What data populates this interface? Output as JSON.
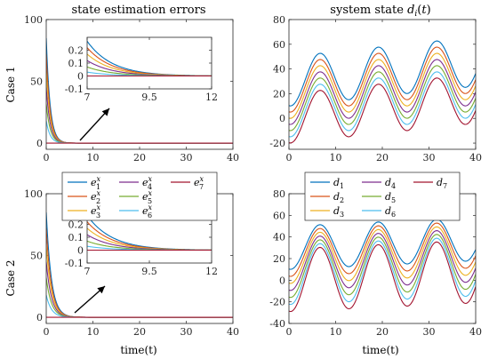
{
  "colors": [
    "#0072BD",
    "#D95319",
    "#EDB120",
    "#7E2F8E",
    "#77AC30",
    "#4DBEEE",
    "#A2142F"
  ],
  "case_labels": [
    "Case 1",
    "Case 2"
  ],
  "chart_data": [
    {
      "id": "p1",
      "type": "line",
      "title": "state estimation errors",
      "xlabel": "",
      "ylabel": "",
      "xlim": [
        0,
        40
      ],
      "ylim": [
        -5,
        100
      ],
      "xticks": [
        "0",
        "10",
        "20",
        "30",
        "40"
      ],
      "xtick_values": [
        0,
        10,
        20,
        30,
        40
      ],
      "yticks": [
        "0",
        "50",
        "100"
      ],
      "ytick_values": [
        0,
        50,
        100
      ],
      "kind": "decay",
      "series": [
        {
          "a": 85,
          "k": 1.2
        },
        {
          "a": 72,
          "k": 1.2
        },
        {
          "a": 58,
          "k": 1.2
        },
        {
          "a": 45,
          "k": 1.2
        },
        {
          "a": 32,
          "k": 1.2
        },
        {
          "a": 18,
          "k": 1.2
        },
        {
          "a": 0,
          "k": 1.2
        }
      ],
      "inset": {
        "xlim": [
          7,
          12
        ],
        "ylim": [
          -0.1,
          0.3
        ],
        "xticks": [
          "7",
          "9.5",
          "12"
        ],
        "xtick_values": [
          7,
          9.5,
          12
        ],
        "yticks": [
          "-0.1",
          "0",
          "0.1",
          "0.2"
        ],
        "ytick_values": [
          -0.1,
          0,
          0.1,
          0.2
        ],
        "series": [
          {
            "a": 0.27,
            "k": 1.0
          },
          {
            "a": 0.22,
            "k": 1.0
          },
          {
            "a": 0.17,
            "k": 1.0
          },
          {
            "a": 0.12,
            "k": 1.0
          },
          {
            "a": 0.07,
            "k": 1.0
          },
          {
            "a": 0.03,
            "k": 1.0
          },
          {
            "a": 0.0,
            "k": 1.0
          }
        ]
      }
    },
    {
      "id": "p2",
      "type": "line",
      "title": "system state",
      "title_math": "d_i(t)",
      "xlabel": "",
      "ylabel": "",
      "xlim": [
        0,
        40
      ],
      "ylim": [
        -25,
        80
      ],
      "xticks": [
        "0",
        "10",
        "20",
        "30",
        "40"
      ],
      "xtick_values": [
        0,
        10,
        20,
        30,
        40
      ],
      "yticks": [
        "-20",
        "0",
        "20",
        "40",
        "60",
        "80"
      ],
      "ytick_values": [
        -20,
        0,
        20,
        40,
        60,
        80
      ],
      "kind": "sine1",
      "series": [
        {
          "offset": 30
        },
        {
          "offset": 25
        },
        {
          "offset": 20
        },
        {
          "offset": 15
        },
        {
          "offset": 10
        },
        {
          "offset": 5
        },
        {
          "offset": 0
        }
      ]
    },
    {
      "id": "p3",
      "type": "line",
      "title": "",
      "xlabel": "time(t)",
      "ylabel": "",
      "xlim": [
        0,
        40
      ],
      "ylim": [
        -5,
        100
      ],
      "xticks": [
        "0",
        "10",
        "20",
        "30",
        "40"
      ],
      "xtick_values": [
        0,
        10,
        20,
        30,
        40
      ],
      "yticks": [
        "0",
        "50",
        "100"
      ],
      "ytick_values": [
        0,
        50,
        100
      ],
      "kind": "decay",
      "legend": [
        "e_1^x",
        "e_2^x",
        "e_3^x",
        "e_4^x",
        "e_5^x",
        "e_6^x",
        "e_7^x"
      ],
      "legend_location": "top",
      "series": [
        {
          "a": 85,
          "k": 0.9
        },
        {
          "a": 72,
          "k": 0.9
        },
        {
          "a": 58,
          "k": 0.9
        },
        {
          "a": 45,
          "k": 0.9
        },
        {
          "a": 32,
          "k": 0.9
        },
        {
          "a": 18,
          "k": 0.9
        },
        {
          "a": 0,
          "k": 0.9
        }
      ],
      "inset": {
        "xlim": [
          7,
          12
        ],
        "ylim": [
          -0.1,
          0.3
        ],
        "xticks": [
          "7",
          "9.5",
          "12"
        ],
        "xtick_values": [
          7,
          9.5,
          12
        ],
        "yticks": [
          "-0.1",
          "0",
          "0.1",
          "0.2"
        ],
        "ytick_values": [
          -0.1,
          0,
          0.1,
          0.2
        ],
        "series": [
          {
            "a": 0.27,
            "k": 1.0
          },
          {
            "a": 0.22,
            "k": 1.0
          },
          {
            "a": 0.17,
            "k": 1.0
          },
          {
            "a": 0.12,
            "k": 1.0
          },
          {
            "a": 0.07,
            "k": 1.0
          },
          {
            "a": 0.03,
            "k": 1.0
          },
          {
            "a": 0.0,
            "k": 1.0
          }
        ]
      }
    },
    {
      "id": "p4",
      "type": "line",
      "title": "",
      "xlabel": "time(t)",
      "ylabel": "",
      "xlim": [
        0,
        40
      ],
      "ylim": [
        -40,
        80
      ],
      "xticks": [
        "0",
        "10",
        "20",
        "30",
        "40"
      ],
      "xtick_values": [
        0,
        10,
        20,
        30,
        40
      ],
      "yticks": [
        "-40",
        "-20",
        "0",
        "20",
        "40",
        "60",
        "80"
      ],
      "ytick_values": [
        -40,
        -20,
        0,
        20,
        40,
        60,
        80
      ],
      "kind": "sine2",
      "legend": [
        "d_1",
        "d_2",
        "d_3",
        "d_4",
        "d_5",
        "d_6",
        "d_7"
      ],
      "legend_location": "top",
      "series": [
        {
          "offset": 30
        },
        {
          "offset": 25
        },
        {
          "offset": 20
        },
        {
          "offset": 15
        },
        {
          "offset": 10
        },
        {
          "offset": 5
        },
        {
          "offset": 0
        }
      ]
    }
  ]
}
